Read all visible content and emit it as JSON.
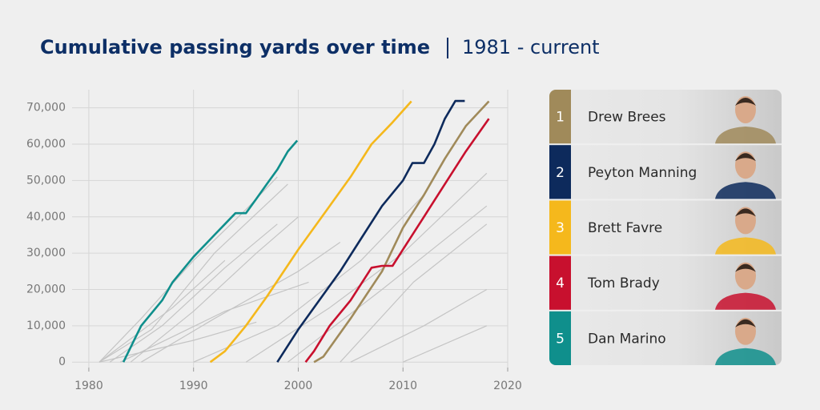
{
  "chart_data": {
    "type": "line",
    "title": "Cumulative passing yards over time",
    "subtitle": "1981 - current",
    "xlim": [
      1978.4,
      2020
    ],
    "xticks": [
      1980,
      1990,
      2000,
      2010,
      2020
    ],
    "ylim": [
      -1500,
      75000
    ],
    "yticks": [
      0,
      {
        "value": 10000,
        "label": "10,000"
      },
      {
        "value": 20000,
        "label": "20,000"
      },
      {
        "value": 30000,
        "label": "30,000"
      },
      {
        "value": 40000,
        "label": "40,000"
      },
      {
        "value": 50000,
        "label": "50,000"
      },
      {
        "value": 60000,
        "label": "60,000"
      },
      {
        "value": 70000,
        "label": "70,000"
      }
    ],
    "grid": true,
    "series": [
      {
        "rank": 1,
        "name": "Drew Brees",
        "color": "#a08a5a",
        "x": [
          2001.5,
          2002.4,
          2005,
          2008,
          2010,
          2012,
          2014,
          2016,
          2018.2
        ],
        "values": [
          0,
          1500,
          12000,
          25000,
          37000,
          46000,
          56000,
          65000,
          71800
        ]
      },
      {
        "rank": 2,
        "name": "Peyton Manning",
        "color": "#0d2a5c",
        "x": [
          1998,
          2000,
          2002,
          2004,
          2006,
          2008,
          2010,
          2010.9,
          2012,
          2013,
          2014,
          2015,
          2015.9
        ],
        "values": [
          0,
          9000,
          17000,
          25000,
          34000,
          43000,
          50000,
          54800,
          54800,
          60000,
          67000,
          71900,
          71900
        ]
      },
      {
        "rank": 3,
        "name": "Brett Favre",
        "color": "#f5b81c",
        "x": [
          1991.6,
          1993,
          1995,
          1997,
          2000,
          2003,
          2005,
          2007,
          2009,
          2010.8
        ],
        "values": [
          0,
          3000,
          10000,
          18000,
          31000,
          43000,
          51000,
          60000,
          66000,
          71800
        ]
      },
      {
        "rank": 4,
        "name": "Tom Brady",
        "color": "#c8102e",
        "x": [
          2000.7,
          2001.5,
          2003,
          2005,
          2007,
          2008,
          2009,
          2010,
          2012,
          2014,
          2016,
          2018.2
        ],
        "values": [
          0,
          3000,
          10000,
          17000,
          26000,
          26500,
          26500,
          31000,
          40000,
          49000,
          58000,
          67000
        ]
      },
      {
        "rank": 5,
        "name": "Dan Marino",
        "color": "#0f8f8c",
        "x": [
          1983.3,
          1985,
          1987,
          1988,
          1990,
          1992,
          1993,
          1994,
          1995,
          1996,
          1997,
          1998,
          1999,
          1999.9
        ],
        "values": [
          0,
          10000,
          17000,
          22000,
          29000,
          35000,
          38000,
          41000,
          41000,
          45000,
          49000,
          53000,
          58000,
          61000
        ]
      }
    ],
    "other_series": [
      {
        "color": "#c4c4c4",
        "x": [
          1981,
          1985,
          1990,
          1995,
          1998
        ],
        "values": [
          0,
          12000,
          28000,
          42000,
          51000
        ]
      },
      {
        "color": "#c4c4c4",
        "x": [
          1981,
          1986,
          1992,
          1999
        ],
        "values": [
          0,
          9000,
          30000,
          49000
        ]
      },
      {
        "color": "#c4c4c4",
        "x": [
          1982,
          1987,
          1993,
          1998
        ],
        "values": [
          0,
          10000,
          26000,
          38000
        ]
      },
      {
        "color": "#c4c4c4",
        "x": [
          1984,
          1990,
          1996,
          2000
        ],
        "values": [
          0,
          14000,
          30000,
          40000
        ]
      },
      {
        "color": "#c4c4c4",
        "x": [
          1981,
          1988,
          1993
        ],
        "values": [
          0,
          15000,
          28000
        ]
      },
      {
        "color": "#c4c4c4",
        "x": [
          1985,
          1992,
          2000,
          2004
        ],
        "values": [
          0,
          12000,
          25000,
          33000
        ]
      },
      {
        "color": "#c4c4c4",
        "x": [
          1990,
          1998,
          2006,
          2012
        ],
        "values": [
          0,
          10000,
          28000,
          46000
        ]
      },
      {
        "color": "#c4c4c4",
        "x": [
          1995,
          2003,
          2010,
          2018
        ],
        "values": [
          0,
          15000,
          30000,
          52000
        ]
      },
      {
        "color": "#c4c4c4",
        "x": [
          1999,
          2008,
          2018
        ],
        "values": [
          0,
          20000,
          43000
        ]
      },
      {
        "color": "#c4c4c4",
        "x": [
          2004,
          2011,
          2018
        ],
        "values": [
          0,
          22000,
          38000
        ]
      },
      {
        "color": "#c4c4c4",
        "x": [
          1981,
          1990,
          1996
        ],
        "values": [
          0,
          6000,
          11000
        ]
      },
      {
        "color": "#c4c4c4",
        "x": [
          2005,
          2012,
          2018
        ],
        "values": [
          0,
          10000,
          20000
        ]
      },
      {
        "color": "#c4c4c4",
        "x": [
          1983,
          1993,
          2001
        ],
        "values": [
          0,
          14000,
          22000
        ]
      },
      {
        "color": "#c4c4c4",
        "x": [
          2010,
          2018
        ],
        "values": [
          0,
          10000
        ]
      }
    ]
  }
}
